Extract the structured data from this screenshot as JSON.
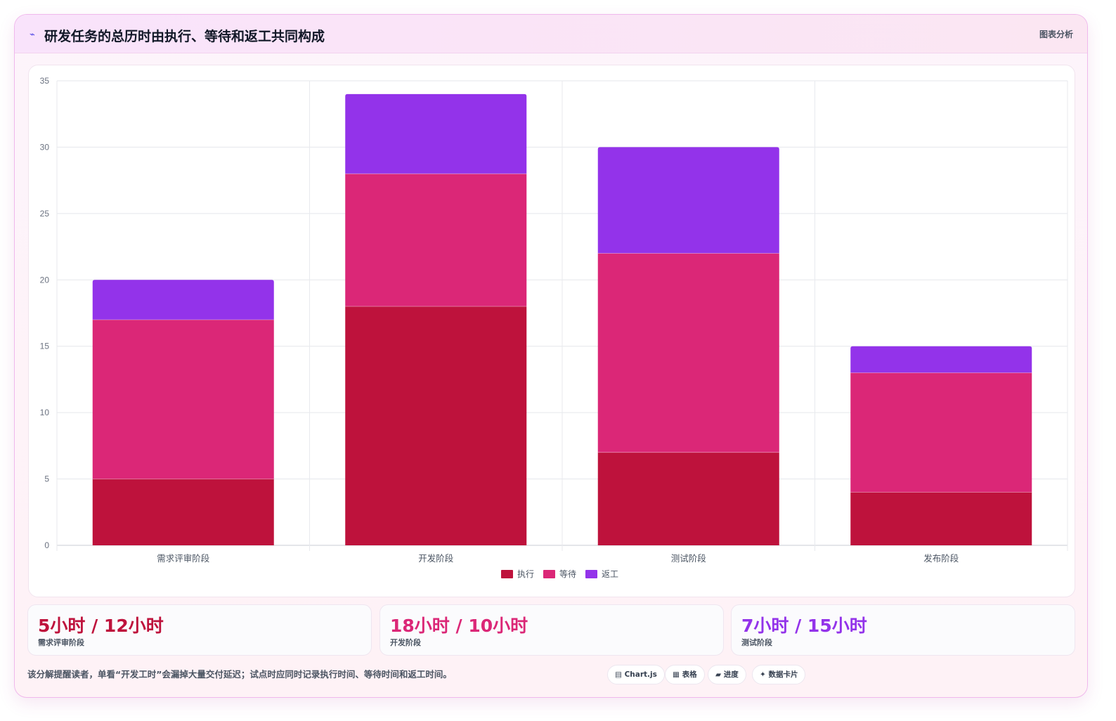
{
  "header": {
    "icon": "trend-line-icon",
    "title": "研发任务的总历时由执行、等待和返工共同构成",
    "analysis_label": "图表分析"
  },
  "colors": {
    "exec": "#be123c",
    "wait": "#db2777",
    "rework": "#9333ea"
  },
  "chart_data": {
    "type": "bar",
    "stacked": true,
    "categories": [
      "需求评审阶段",
      "开发阶段",
      "测试阶段",
      "发布阶段"
    ],
    "series": [
      {
        "name": "执行",
        "values": [
          5,
          18,
          7,
          4
        ],
        "color": "#be123c"
      },
      {
        "name": "等待",
        "values": [
          12,
          10,
          15,
          9
        ],
        "color": "#db2777"
      },
      {
        "name": "返工",
        "values": [
          3,
          6,
          8,
          2
        ],
        "color": "#9333ea"
      }
    ],
    "ylim": [
      0,
      35
    ],
    "yticks": [
      0,
      5,
      10,
      15,
      20,
      25,
      30,
      35
    ],
    "grid": true,
    "legend": "bottom"
  },
  "stats": [
    {
      "value": "5小时 / 12小时",
      "label": "需求评审阶段",
      "color": "#be123c"
    },
    {
      "value": "18小时 / 10小时",
      "label": "开发阶段",
      "color": "#db2777"
    },
    {
      "value": "7小时 / 15小时",
      "label": "测试阶段",
      "color": "#9333ea"
    }
  ],
  "footer": {
    "note": "该分解提醒读者，单看“开发工时”会漏掉大量交付延迟；试点时应同时记录执行时间、等待时间和返工时间。",
    "chips": [
      {
        "icon": "▤",
        "label": "Chart.js"
      },
      {
        "icon": "▦",
        "label": "表格"
      },
      {
        "icon": "▰",
        "label": "进度"
      },
      {
        "icon": "✦",
        "label": "数据卡片"
      }
    ]
  }
}
